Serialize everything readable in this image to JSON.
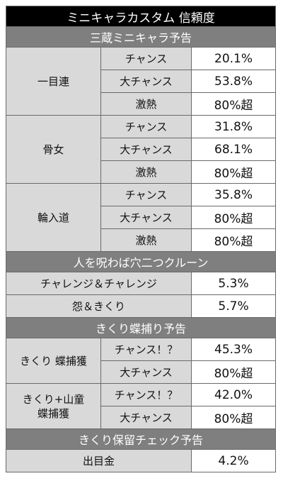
{
  "title": "ミニキャラカスタム 信頼度",
  "sections": {
    "sanzou": {
      "header": "三蔵ミニキャラ予告",
      "groups": [
        {
          "name": "一目連",
          "rows": [
            {
              "label": "チャンス",
              "value": "20.1%"
            },
            {
              "label": "大チャンス",
              "value": "53.8%"
            },
            {
              "label": "激熱",
              "value": "80%超"
            }
          ]
        },
        {
          "name": "骨女",
          "rows": [
            {
              "label": "チャンス",
              "value": "31.8%"
            },
            {
              "label": "大チャンス",
              "value": "68.1%"
            },
            {
              "label": "激熱",
              "value": "80%超"
            }
          ]
        },
        {
          "name": "輪入道",
          "rows": [
            {
              "label": "チャンス",
              "value": "35.8%"
            },
            {
              "label": "大チャンス",
              "value": "80%超"
            },
            {
              "label": "激熱",
              "value": "80%超"
            }
          ]
        }
      ]
    },
    "hitowo": {
      "header": "人を呪わば穴二つクルーン",
      "rows": [
        {
          "label": "チャレンジ＆チャレンジ",
          "value": "5.3%"
        },
        {
          "label": "怨＆きくり",
          "value": "5.7%"
        }
      ]
    },
    "kikuri": {
      "header": "きくり蝶捕り予告",
      "groups": [
        {
          "name": "きくり 蝶捕獲",
          "rows": [
            {
              "label": "チャンス！？",
              "value": "45.3%"
            },
            {
              "label": "大チャンス",
              "value": "80%超"
            }
          ]
        },
        {
          "name_line1": "きくり+山童",
          "name_line2": "蝶捕獲",
          "rows": [
            {
              "label": "チャンス！？",
              "value": "42.0%"
            },
            {
              "label": "大チャンス",
              "value": "80%超"
            }
          ]
        }
      ]
    },
    "horyu": {
      "header": "きくり保留チェック予告",
      "rows": [
        {
          "label": "出目金",
          "value": "4.2%"
        }
      ]
    }
  }
}
